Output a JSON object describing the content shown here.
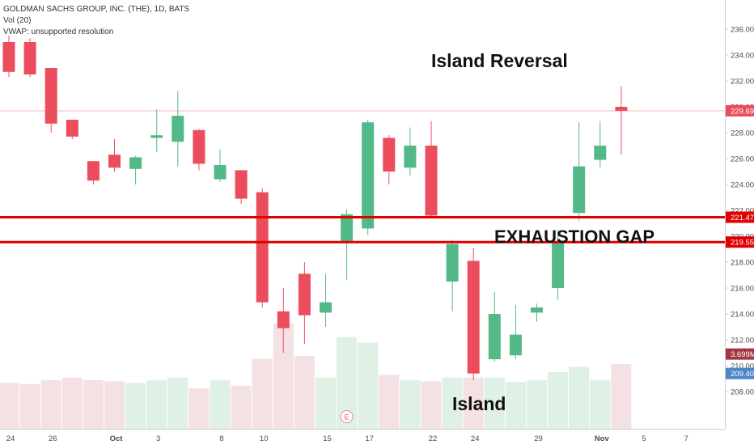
{
  "header": {
    "symbol_line": "GOLDMAN SACHS GROUP, INC. (THE), 1D, BATS",
    "vol_line": "Vol (20)",
    "vwap_line": "VWAP: unsupported resolution"
  },
  "annotations": {
    "island_reversal": "Island Reversal",
    "exhaustion_gap": "EXHAUSTION GAP",
    "island": "Island"
  },
  "colors": {
    "up": "#53b987",
    "down": "#eb4d5c",
    "vol_up": "#dff0e4",
    "vol_down": "#f3e1e3",
    "level_line": "#e00000",
    "last_price_line": "#f2b8bd",
    "axis_text": "#4a4a4a"
  },
  "chart_data": {
    "type": "candlestick",
    "title": "GOLDMAN SACHS GROUP, INC. (THE), 1D, BATS",
    "x_tick_labels": [
      "24",
      "26",
      "Oct",
      "3",
      "8",
      "10",
      "15",
      "17",
      "22",
      "24",
      "29",
      "Nov",
      "5",
      "7"
    ],
    "y_ticks": [
      208,
      210,
      212,
      214,
      216,
      218,
      220,
      222,
      224,
      226,
      228,
      230,
      232,
      234,
      236
    ],
    "ylim": [
      206.5,
      237
    ],
    "candles": [
      {
        "open": 235.0,
        "high": 235.5,
        "low": 232.3,
        "close": 232.7
      },
      {
        "open": 235.0,
        "high": 235.3,
        "low": 232.3,
        "close": 232.5
      },
      {
        "open": 233.0,
        "high": 233.0,
        "low": 228.0,
        "close": 228.7
      },
      {
        "open": 229.0,
        "high": 229.0,
        "low": 227.5,
        "close": 227.7
      },
      {
        "open": 225.8,
        "high": 225.8,
        "low": 224.0,
        "close": 224.3
      },
      {
        "open": 226.3,
        "high": 227.5,
        "low": 225.0,
        "close": 225.3
      },
      {
        "open": 225.2,
        "high": 226.2,
        "low": 224.0,
        "close": 226.1
      },
      {
        "open": 227.6,
        "high": 229.8,
        "low": 226.5,
        "close": 227.8
      },
      {
        "open": 227.3,
        "high": 231.2,
        "low": 225.4,
        "close": 229.3
      },
      {
        "open": 228.2,
        "high": 228.3,
        "low": 225.1,
        "close": 225.6
      },
      {
        "open": 224.4,
        "high": 226.7,
        "low": 224.2,
        "close": 225.5
      },
      {
        "open": 225.1,
        "high": 225.1,
        "low": 222.5,
        "close": 222.9
      },
      {
        "open": 223.4,
        "high": 223.7,
        "low": 214.5,
        "close": 214.9
      },
      {
        "open": 214.2,
        "high": 216.0,
        "low": 211.0,
        "close": 212.9
      },
      {
        "open": 217.1,
        "high": 218.0,
        "low": 211.7,
        "close": 213.9
      },
      {
        "open": 214.1,
        "high": 217.1,
        "low": 213.0,
        "close": 214.9
      },
      {
        "open": 219.5,
        "high": 222.1,
        "low": 216.6,
        "close": 221.7
      },
      {
        "open": 220.6,
        "high": 229.0,
        "low": 220.1,
        "close": 228.8
      },
      {
        "open": 227.6,
        "high": 227.8,
        "low": 224.0,
        "close": 225.0
      },
      {
        "open": 225.3,
        "high": 228.4,
        "low": 224.7,
        "close": 227.0
      },
      {
        "open": 227.0,
        "high": 228.9,
        "low": 221.5,
        "close": 221.6
      },
      {
        "open": 216.5,
        "high": 219.7,
        "low": 214.2,
        "close": 219.4
      },
      {
        "open": 218.1,
        "high": 219.1,
        "low": 208.9,
        "close": 209.4
      },
      {
        "open": 210.5,
        "high": 215.7,
        "low": 210.3,
        "close": 214.0
      },
      {
        "open": 210.8,
        "high": 214.7,
        "low": 210.5,
        "close": 212.4
      },
      {
        "open": 214.1,
        "high": 214.8,
        "low": 213.4,
        "close": 214.5
      },
      {
        "open": 216.0,
        "high": 220.5,
        "low": 215.1,
        "close": 219.6
      },
      {
        "open": 221.8,
        "high": 228.8,
        "low": 221.2,
        "close": 225.4
      },
      {
        "open": 225.9,
        "high": 228.9,
        "low": 225.3,
        "close": 227.0
      },
      {
        "open": 230.0,
        "high": 231.6,
        "low": 226.3,
        "close": 229.69
      }
    ],
    "volume": {
      "label": "3.699M",
      "values": [
        0.85,
        0.83,
        0.9,
        0.95,
        0.9,
        0.88,
        0.85,
        0.9,
        0.95,
        0.75,
        0.9,
        0.8,
        1.3,
        1.95,
        1.35,
        0.95,
        1.7,
        1.6,
        1.0,
        0.9,
        0.88,
        0.95,
        0.95,
        0.95,
        0.87,
        0.9,
        1.05,
        1.15,
        0.9,
        1.2
      ]
    },
    "levels": [
      {
        "label": "221.47",
        "value": 221.47
      },
      {
        "label": "219.55",
        "value": 219.55
      }
    ],
    "last_price": {
      "label": "229.69",
      "value": 229.69
    },
    "marker_price": {
      "label": "209.40",
      "value": 209.4
    },
    "earnings_marker": {
      "label": "E",
      "candle_index": 16
    }
  }
}
